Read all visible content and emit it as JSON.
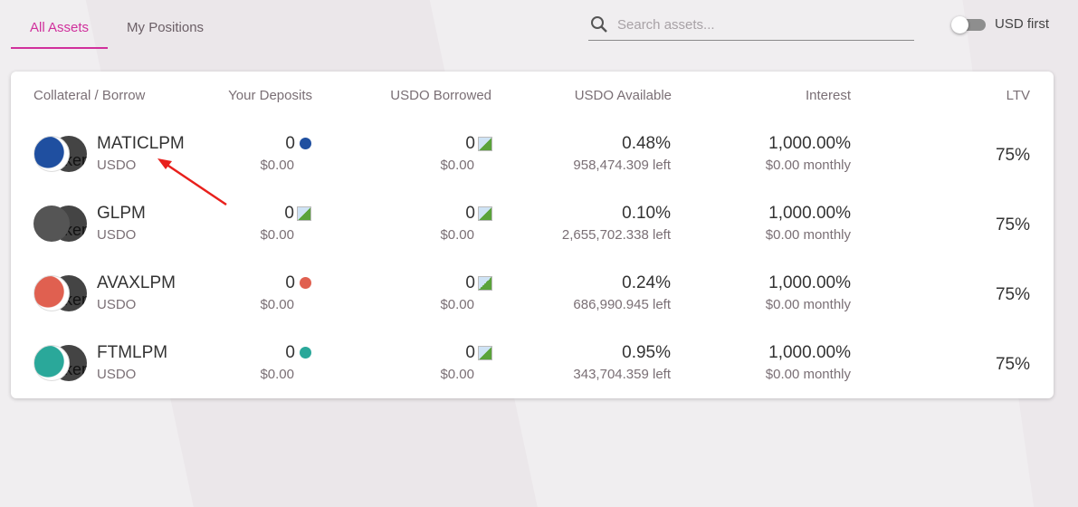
{
  "tabs": [
    {
      "label": "All Assets",
      "active": true
    },
    {
      "label": "My Positions",
      "active": false
    }
  ],
  "search": {
    "placeholder": "Search assets..."
  },
  "toggle": {
    "label": "USD first",
    "on": false
  },
  "headers": {
    "collateral": "Collateral / Borrow",
    "deposits": "Your Deposits",
    "borrowed": "USDO Borrowed",
    "available": "USDO Available",
    "interest": "Interest",
    "ltv": "LTV"
  },
  "rows": [
    {
      "name": "MATICLPM",
      "borrow": "USDO",
      "deposit": "0",
      "deposit_usd": "$0.00",
      "borrowed": "0",
      "borrowed_usd": "$0.00",
      "available_pct": "0.48%",
      "available_left": "958,474.309 left",
      "interest": "1,000.00%",
      "interest_monthly": "$0.00 monthly",
      "ltv": "75%",
      "icon": "matic-dragon-icon",
      "color": "#1f4fa0"
    },
    {
      "name": "GLPM",
      "borrow": "USDO",
      "deposit": "0",
      "deposit_usd": "$0.00",
      "borrowed": "0",
      "borrowed_usd": "$0.00",
      "available_pct": "0.10%",
      "available_left": "2,655,702.338 left",
      "interest": "1,000.00%",
      "interest_monthly": "$0.00 monthly",
      "ltv": "75%",
      "icon": "broken-image-icon",
      "color": "#555555"
    },
    {
      "name": "AVAXLPM",
      "borrow": "USDO",
      "deposit": "0",
      "deposit_usd": "$0.00",
      "borrowed": "0",
      "borrowed_usd": "$0.00",
      "available_pct": "0.24%",
      "available_left": "686,990.945 left",
      "interest": "1,000.00%",
      "interest_monthly": "$0.00 monthly",
      "ltv": "75%",
      "icon": "avax-character-icon",
      "color": "#e06050"
    },
    {
      "name": "FTMLPM",
      "borrow": "USDO",
      "deposit": "0",
      "deposit_usd": "$0.00",
      "borrowed": "0",
      "borrowed_usd": "$0.00",
      "available_pct": "0.95%",
      "available_left": "343,704.359 left",
      "interest": "1,000.00%",
      "interest_monthly": "$0.00 monthly",
      "ltv": "75%",
      "icon": "ftm-ghost-icon",
      "color": "#2aa89a"
    }
  ],
  "token_alt": "token",
  "colors": {
    "accent": "#d0309c",
    "annotation_arrow": "#e8201c"
  }
}
